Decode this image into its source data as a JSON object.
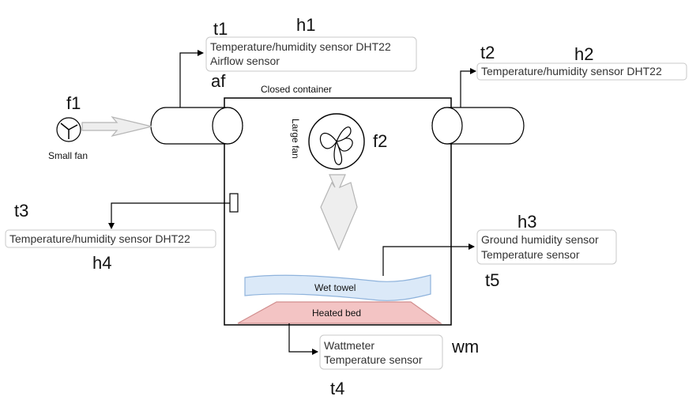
{
  "labels": {
    "t1": "t1",
    "h1": "h1",
    "t2": "t2",
    "h2": "h2",
    "af": "af",
    "f1": "f1",
    "f2": "f2",
    "t3": "t3",
    "h4": "h4",
    "h3": "h3",
    "t5": "t5",
    "wm": "wm",
    "t4": "t4"
  },
  "boxes": {
    "sensor_t1": {
      "line1": "Temperature/humidity sensor DHT22",
      "line2": "Airflow sensor"
    },
    "sensor_t2": {
      "line1": "Temperature/humidity sensor DHT22"
    },
    "sensor_t3": {
      "line1": "Temperature/humidity sensor DHT22"
    },
    "sensor_ground": {
      "line1": "Ground humidity sensor",
      "line2": "Temperature sensor"
    },
    "sensor_wattmeter": {
      "line1": "Wattmeter",
      "line2": "Temperature sensor"
    }
  },
  "components": {
    "container": "Closed container",
    "small_fan": "Small fan",
    "large_fan": "Large fan",
    "wet_towel": "Wet towel",
    "heated_bed": "Heated bed"
  },
  "colors": {
    "towel_fill": "#dbe9f8",
    "towel_stroke": "#8fb3dc",
    "bed_fill": "#f3c4c4",
    "bed_stroke": "#d18e8e",
    "arrow_fill": "#eeeeee",
    "arrow_stroke": "#b5b5b5"
  }
}
